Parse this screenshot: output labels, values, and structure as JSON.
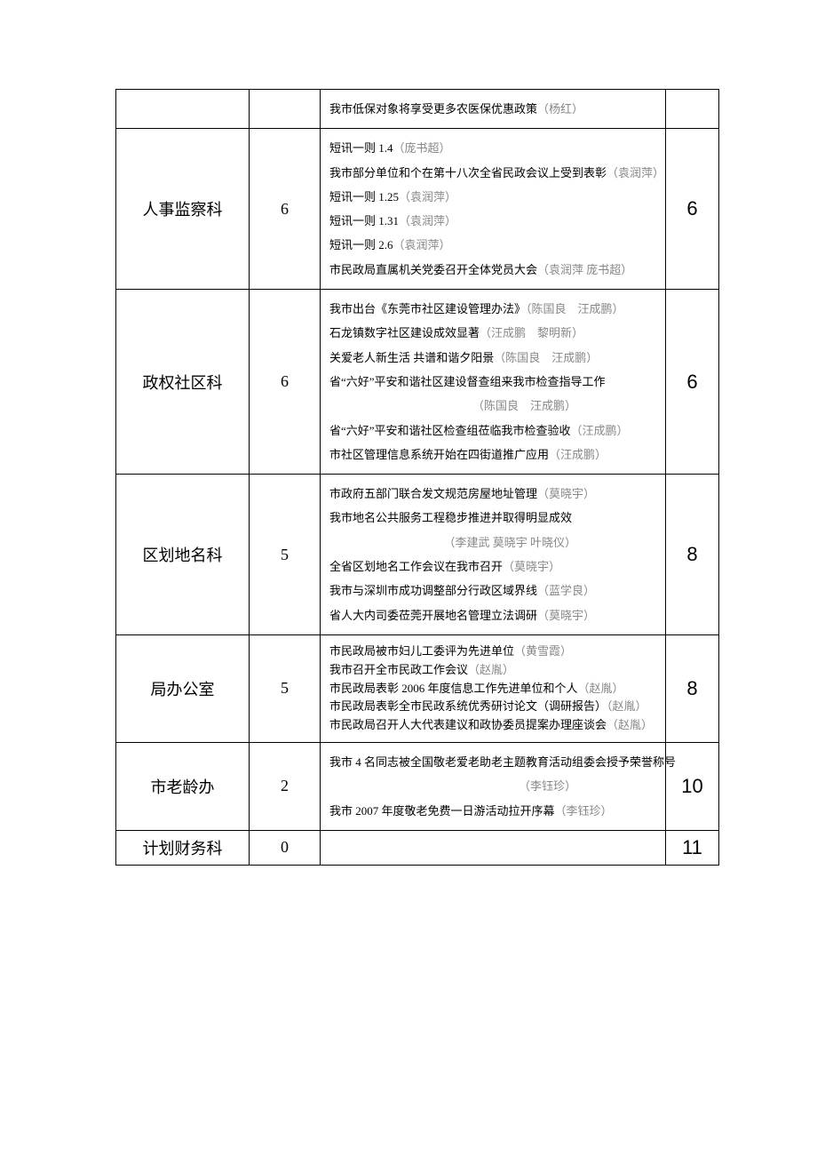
{
  "rows": [
    {
      "dept": "",
      "count": "",
      "rank": "",
      "lines": [
        {
          "text": "我市低保对象将享受更多农医保优惠政策",
          "author": "（杨红）"
        }
      ]
    },
    {
      "dept": "人事监察科",
      "count": "6",
      "rank": "6",
      "lines": [
        {
          "text": "短讯一则  1.4",
          "author": "（庞书超）"
        },
        {
          "text": "我市部分单位和个在第十八次全省民政会议上受到表彰",
          "author": "（袁润萍）"
        },
        {
          "text": "短讯一则 1.25",
          "author": "（袁润萍）"
        },
        {
          "text": "短讯一则 1.31",
          "author": "（袁润萍）"
        },
        {
          "text": "短讯一则 2.6",
          "author": "（袁润萍）"
        },
        {
          "text": "市民政局直属机关党委召开全体党员大会",
          "author": "（袁润萍 庞书超）"
        }
      ]
    },
    {
      "dept": "政权社区科",
      "count": "6",
      "rank": "6",
      "lines": [
        {
          "text": "我市出台《东莞市社区建设管理办法》",
          "author": "（陈国良　汪成鹏）"
        },
        {
          "text": "石龙镇数字社区建设成效显著",
          "author": "（汪成鹏　黎明新）"
        },
        {
          "text": "关爱老人新生活 共谱和谐夕阳景",
          "author": "（陈国良　汪成鹏）"
        },
        {
          "text": "省“六好”平安和谐社区建设督查组来我市检查指导工作",
          "author": ""
        },
        {
          "text": "",
          "author": "（陈国良　汪成鹏）",
          "right": true
        },
        {
          "text": "省“六好”平安和谐社区检查组莅临我市检查验收",
          "author": "（汪成鹏）"
        },
        {
          "text": "市社区管理信息系统开始在四街道推广应用",
          "author": "（汪成鹏）"
        }
      ]
    },
    {
      "dept": "区划地名科",
      "count": "5",
      "rank": "8",
      "lines": [
        {
          "text": "市政府五部门联合发文规范房屋地址管理",
          "author": "（莫晓宇）"
        },
        {
          "text": "我市地名公共服务工程稳步推进并取得明显成效",
          "author": ""
        },
        {
          "text": "",
          "author": "（李建武 莫晓宇 叶晓仪）",
          "right": true
        },
        {
          "text": "全省区划地名工作会议在我市召开",
          "author": "（莫晓宇）"
        },
        {
          "text": "我市与深圳市成功调整部分行政区域界线",
          "author": "（蓝学良）"
        },
        {
          "text": "省人大内司委莅莞开展地名管理立法调研",
          "author": "（莫晓宇）"
        }
      ]
    },
    {
      "dept": "局办公室",
      "count": "5",
      "rank": "8",
      "tight": true,
      "lines": [
        {
          "text": "市民政局被市妇儿工委评为先进单位",
          "author": "（黄雪霞）"
        },
        {
          "text": "我市召开全市民政工作会议",
          "author": "（赵胤）"
        },
        {
          "text": "市民政局表彰 2006 年度信息工作先进单位和个人",
          "author": "（赵胤）"
        },
        {
          "text": "市民政局表彰全市民政系统优秀研讨论文（调研报告）",
          "author": "（赵胤）"
        },
        {
          "text": "市民政局召开人大代表建议和政协委员提案办理座谈会",
          "author": "（赵胤）"
        }
      ]
    },
    {
      "dept": "市老龄办",
      "count": "2",
      "rank": "10",
      "lines": [
        {
          "text": "我市 4 名同志被全国敬老爱老助老主题教育活动组委会授予荣誉称号",
          "author": ""
        },
        {
          "text": "",
          "author": "（李钰珍）",
          "right": true
        },
        {
          "text": "我市 2007 年度敬老免费一日游活动拉开序幕",
          "author": "（李钰珍）"
        }
      ]
    },
    {
      "dept": "计划财务科",
      "count": "0",
      "rank": "11",
      "lines": []
    }
  ]
}
